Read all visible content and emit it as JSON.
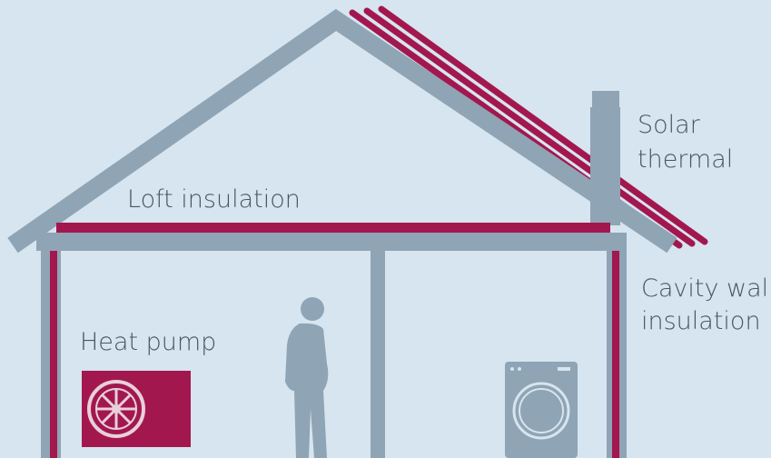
{
  "labels": {
    "solar_thermal": [
      "Solar",
      "thermal"
    ],
    "loft_insulation": [
      "Loft insulation"
    ],
    "cavity_wall_insulation": [
      "Cavity wall",
      "insulation"
    ],
    "heat_pump": [
      "Heat pump"
    ]
  }
}
